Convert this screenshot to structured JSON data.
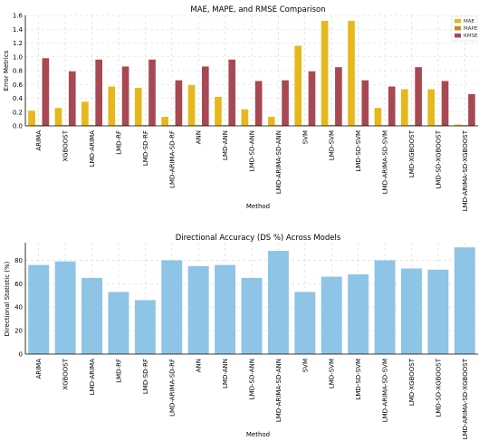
{
  "chart_data": [
    {
      "type": "bar",
      "title": "MAE, MAPE, and RMSE Comparison",
      "xlabel": "Method",
      "ylabel": "Error Metrics",
      "ylim": [
        0,
        1.6
      ],
      "yticks": [
        "0.0",
        "0.2",
        "0.4",
        "0.6",
        "0.8",
        "1.0",
        "1.2",
        "1.4",
        "1.6"
      ],
      "grid": true,
      "legend_position": "top-right",
      "categories": [
        "ARIMA",
        "XGBOOST",
        "LMD-ARIMA",
        "LMD-RF",
        "LMD-SD-RF",
        "LMD-ARIMA-SD-RF",
        "ANN",
        "LMD-ANN",
        "LMD-SD-ANN",
        "LMD-ARIMA-SD-ANN",
        "SVM",
        "LMD-SVM",
        "LMD-SD-SVM",
        "LMD-ARIMA-SD-SVM",
        "LMD-XGBOOST",
        "LMD-SD-XGBOOST",
        "LMD-ARIMA-SD-XGBOOST"
      ],
      "series": [
        {
          "name": "MAE",
          "color": "#e6b81c",
          "values": [
            0.22,
            0.26,
            0.35,
            0.57,
            0.55,
            0.13,
            0.59,
            0.42,
            0.24,
            0.13,
            1.16,
            1.52,
            1.52,
            0.26,
            0.53,
            0.53,
            0.02
          ]
        },
        {
          "name": "MAPE",
          "color": "#c58a1a",
          "values": [
            0.01,
            0.01,
            0.01,
            0.01,
            0.01,
            0.01,
            0.01,
            0.01,
            0.01,
            0.01,
            0.01,
            0.01,
            0.01,
            0.01,
            0.01,
            0.01,
            0.01
          ]
        },
        {
          "name": "RMSE",
          "color": "#a84852",
          "values": [
            0.98,
            0.79,
            0.96,
            0.86,
            0.96,
            0.66,
            0.86,
            0.96,
            0.65,
            0.66,
            0.79,
            0.85,
            0.66,
            0.57,
            0.85,
            0.65,
            0.46
          ]
        }
      ]
    },
    {
      "type": "bar",
      "title": "Directional Accuracy (DS %) Across Models",
      "xlabel": "Method",
      "ylabel": "Directional Statistic (%)",
      "ylim": [
        0,
        95
      ],
      "yticks": [
        "0",
        "20",
        "40",
        "60",
        "80"
      ],
      "grid": true,
      "color": "#8ec4e6",
      "categories": [
        "ARIMA",
        "XGBOOST",
        "LMD-ARIMA",
        "LMD-RF",
        "LMD-SD-RF",
        "LMD-ARIMA-SD-RF",
        "ANN",
        "LMD-ANN",
        "LMD-SD-ANN",
        "LMD-ARIMA-SD-ANN",
        "SVM",
        "LMD-SVM",
        "LMD-SD-SVM",
        "LMD-ARIMA-SD-SVM",
        "LMD-XGBOOST",
        "LMD-SD-XGBOOST",
        "LMD-ARIMA-SD-XGBOOST"
      ],
      "values": [
        76,
        79,
        65,
        53,
        46,
        80,
        75,
        76,
        65,
        88,
        53,
        66,
        68,
        80,
        73,
        72,
        91
      ]
    }
  ]
}
